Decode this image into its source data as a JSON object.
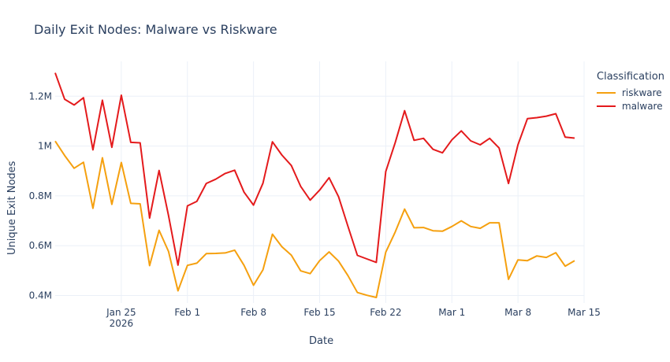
{
  "chart_data": {
    "type": "line",
    "title": "Daily Exit Nodes: Malware vs Riskware",
    "xlabel": "Date",
    "ylabel": "Unique Exit Nodes",
    "legend_title": "Classification",
    "legend_position": "top-right",
    "grid": true,
    "x_start_date": "2026-01-18",
    "xlim": [
      "2026-01-18",
      "2026-03-15"
    ],
    "ylim": [
      370000,
      1340000
    ],
    "x_ticks": [
      {
        "date": "2026-01-25",
        "label": "Jan 25",
        "sublabel": "2026"
      },
      {
        "date": "2026-02-01",
        "label": "Feb 1",
        "sublabel": ""
      },
      {
        "date": "2026-02-08",
        "label": "Feb 8",
        "sublabel": ""
      },
      {
        "date": "2026-02-15",
        "label": "Feb 15",
        "sublabel": ""
      },
      {
        "date": "2026-02-22",
        "label": "Feb 22",
        "sublabel": ""
      },
      {
        "date": "2026-03-01",
        "label": "Mar 1",
        "sublabel": ""
      },
      {
        "date": "2026-03-08",
        "label": "Mar 8",
        "sublabel": ""
      },
      {
        "date": "2026-03-15",
        "label": "Mar 15",
        "sublabel": ""
      }
    ],
    "y_ticks": [
      {
        "value": 400000,
        "label": "0.4M"
      },
      {
        "value": 600000,
        "label": "0.6M"
      },
      {
        "value": 800000,
        "label": "0.8M"
      },
      {
        "value": 1000000,
        "label": "1M"
      },
      {
        "value": 1200000,
        "label": "1.2M"
      }
    ],
    "series": [
      {
        "name": "riskware",
        "color": "#f5a00f",
        "values": [
          1020000,
          962000,
          911000,
          935000,
          750000,
          953000,
          766000,
          934000,
          770000,
          768000,
          520000,
          662000,
          577000,
          419000,
          521000,
          530000,
          568000,
          569000,
          571000,
          582000,
          521000,
          441000,
          503000,
          646000,
          596000,
          562000,
          499000,
          488000,
          540000,
          575000,
          538000,
          480000,
          412000,
          401000,
          392000,
          574000,
          655000,
          747000,
          672000,
          673000,
          660000,
          658000,
          677000,
          700000,
          677000,
          670000,
          692000,
          692000,
          465000,
          543000,
          540000,
          559000,
          553000,
          572000,
          518000,
          540000
        ]
      },
      {
        "name": "malware",
        "color": "#e41a1c",
        "values": [
          1294000,
          1188000,
          1165000,
          1194000,
          985000,
          1184000,
          995000,
          1204000,
          1015000,
          1013000,
          711000,
          902000,
          721000,
          522000,
          760000,
          778000,
          850000,
          867000,
          890000,
          903000,
          815000,
          763000,
          851000,
          1017000,
          964000,
          922000,
          838000,
          783000,
          823000,
          873000,
          797000,
          678000,
          561000,
          547000,
          533000,
          898000,
          1014000,
          1142000,
          1023000,
          1031000,
          987000,
          973000,
          1025000,
          1061000,
          1021000,
          1005000,
          1031000,
          992000,
          850000,
          1005000,
          1110000,
          1114000,
          1120000,
          1130000,
          1036000,
          1032000
        ]
      }
    ]
  }
}
